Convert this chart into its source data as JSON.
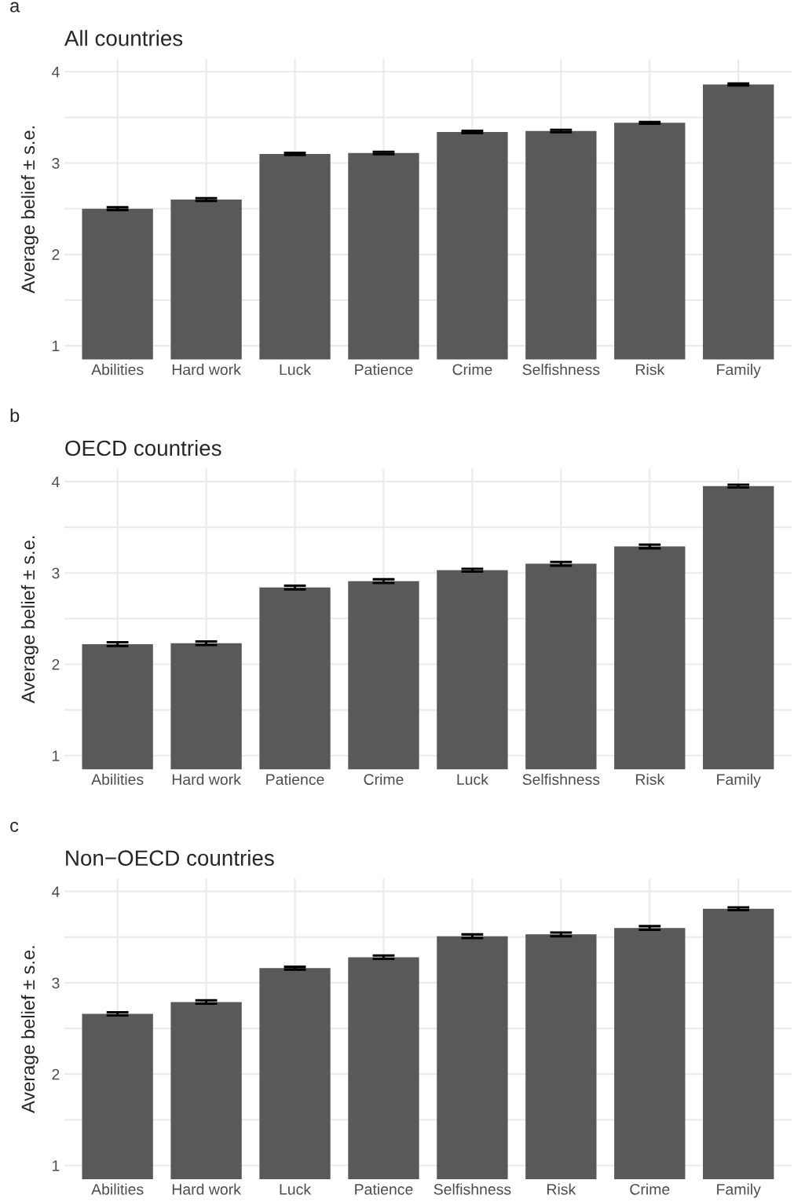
{
  "chart_data": [
    {
      "type": "bar",
      "title": "All countries",
      "ylabel": "Average belief ± s.e.",
      "annotations": [
        "a"
      ],
      "categories": [
        "Abilities",
        "Hard work",
        "Luck",
        "Patience",
        "Crime",
        "Selfishness",
        "Risk",
        "Family"
      ],
      "values": [
        2.5,
        2.6,
        3.1,
        3.11,
        3.34,
        3.35,
        3.44,
        3.86
      ],
      "errors": [
        0.015,
        0.015,
        0.012,
        0.012,
        0.012,
        0.013,
        0.01,
        0.01
      ],
      "color": "#595959",
      "ylim": [
        0.85,
        4.14
      ],
      "yticks": [
        1,
        {
          "value": 1.5,
          "label": null
        },
        2,
        {
          "value": 2.5,
          "label": null
        },
        3,
        {
          "value": 3.5,
          "label": null
        },
        4
      ],
      "grid": true
    },
    {
      "type": "bar",
      "title": "OECD countries",
      "ylabel": "Average belief ± s.e.",
      "annotations": [
        "b"
      ],
      "categories": [
        "Abilities",
        "Hard work",
        "Patience",
        "Crime",
        "Luck",
        "Selfishness",
        "Risk",
        "Family"
      ],
      "values": [
        2.22,
        2.23,
        2.84,
        2.91,
        3.03,
        3.1,
        3.29,
        3.95
      ],
      "errors": [
        0.02,
        0.02,
        0.02,
        0.02,
        0.015,
        0.02,
        0.02,
        0.015
      ],
      "color": "#595959",
      "ylim": [
        0.85,
        4.14
      ],
      "yticks": [
        1,
        {
          "value": 1.5,
          "label": null
        },
        2,
        {
          "value": 2.5,
          "label": null
        },
        3,
        {
          "value": 3.5,
          "label": null
        },
        4
      ],
      "grid": true
    },
    {
      "type": "bar",
      "title": "Non−OECD countries",
      "ylabel": "Average belief ± s.e.",
      "annotations": [
        "c"
      ],
      "categories": [
        "Abilities",
        "Hard work",
        "Luck",
        "Patience",
        "Selfishness",
        "Risk",
        "Crime",
        "Family"
      ],
      "values": [
        2.66,
        2.79,
        3.16,
        3.28,
        3.51,
        3.53,
        3.6,
        3.81
      ],
      "errors": [
        0.018,
        0.018,
        0.015,
        0.018,
        0.02,
        0.02,
        0.02,
        0.015
      ],
      "color": "#595959",
      "ylim": [
        0.85,
        4.14
      ],
      "yticks": [
        1,
        {
          "value": 1.5,
          "label": null
        },
        2,
        {
          "value": 2.5,
          "label": null
        },
        3,
        {
          "value": 3.5,
          "label": null
        },
        4
      ],
      "grid": true
    }
  ]
}
